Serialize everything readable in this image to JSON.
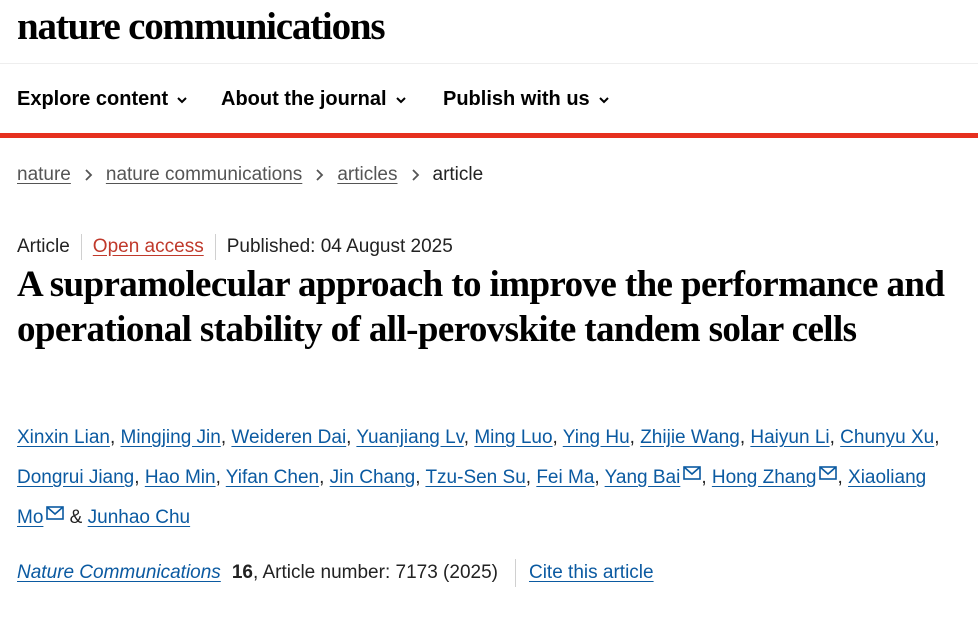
{
  "site": {
    "logo": "nature communications"
  },
  "nav": {
    "items": [
      {
        "label": "Explore content",
        "icon": "chevron-down-icon"
      },
      {
        "label": "About the journal",
        "icon": "chevron-down-icon"
      },
      {
        "label": "Publish with us",
        "icon": "chevron-down-icon"
      }
    ]
  },
  "colors": {
    "accent_bar": "#e6301f",
    "link": "#0b5aa1",
    "open_access": "#c0392b"
  },
  "breadcrumb": {
    "items": [
      "nature",
      "nature communications",
      "articles"
    ],
    "current": "article"
  },
  "article": {
    "type": "Article",
    "access": "Open access",
    "published": "Published: 04 August 2025",
    "title": "A supramolecular approach to improve the performance and operational stability of all-perovskite tandem solar cells",
    "authors": [
      {
        "name": "Xinxin Lian",
        "corresponding": false
      },
      {
        "name": "Mingjing Jin",
        "corresponding": false
      },
      {
        "name": "Weideren Dai",
        "corresponding": false
      },
      {
        "name": "Yuanjiang Lv",
        "corresponding": false
      },
      {
        "name": "Ming Luo",
        "corresponding": false
      },
      {
        "name": "Ying Hu",
        "corresponding": false
      },
      {
        "name": "Zhijie Wang",
        "corresponding": false
      },
      {
        "name": "Haiyun Li",
        "corresponding": false
      },
      {
        "name": "Chunyu Xu",
        "corresponding": false
      },
      {
        "name": "Dongrui Jiang",
        "corresponding": false
      },
      {
        "name": "Hao Min",
        "corresponding": false
      },
      {
        "name": "Yifan Chen",
        "corresponding": false
      },
      {
        "name": "Jin Chang",
        "corresponding": false
      },
      {
        "name": "Tzu-Sen Su",
        "corresponding": false
      },
      {
        "name": "Fei Ma",
        "corresponding": false
      },
      {
        "name": "Yang Bai",
        "corresponding": true
      },
      {
        "name": "Hong Zhang",
        "corresponding": true
      },
      {
        "name": "Xiaoliang Mo",
        "corresponding": true
      },
      {
        "name": "Junhao Chu",
        "corresponding": false
      }
    ],
    "author_separator": ", ",
    "author_last_separator": " & "
  },
  "citation": {
    "journal": "Nature Communications",
    "volume": "16",
    "article_number": ", Article number: 7173 (2025)",
    "cite_label": "Cite this article"
  }
}
